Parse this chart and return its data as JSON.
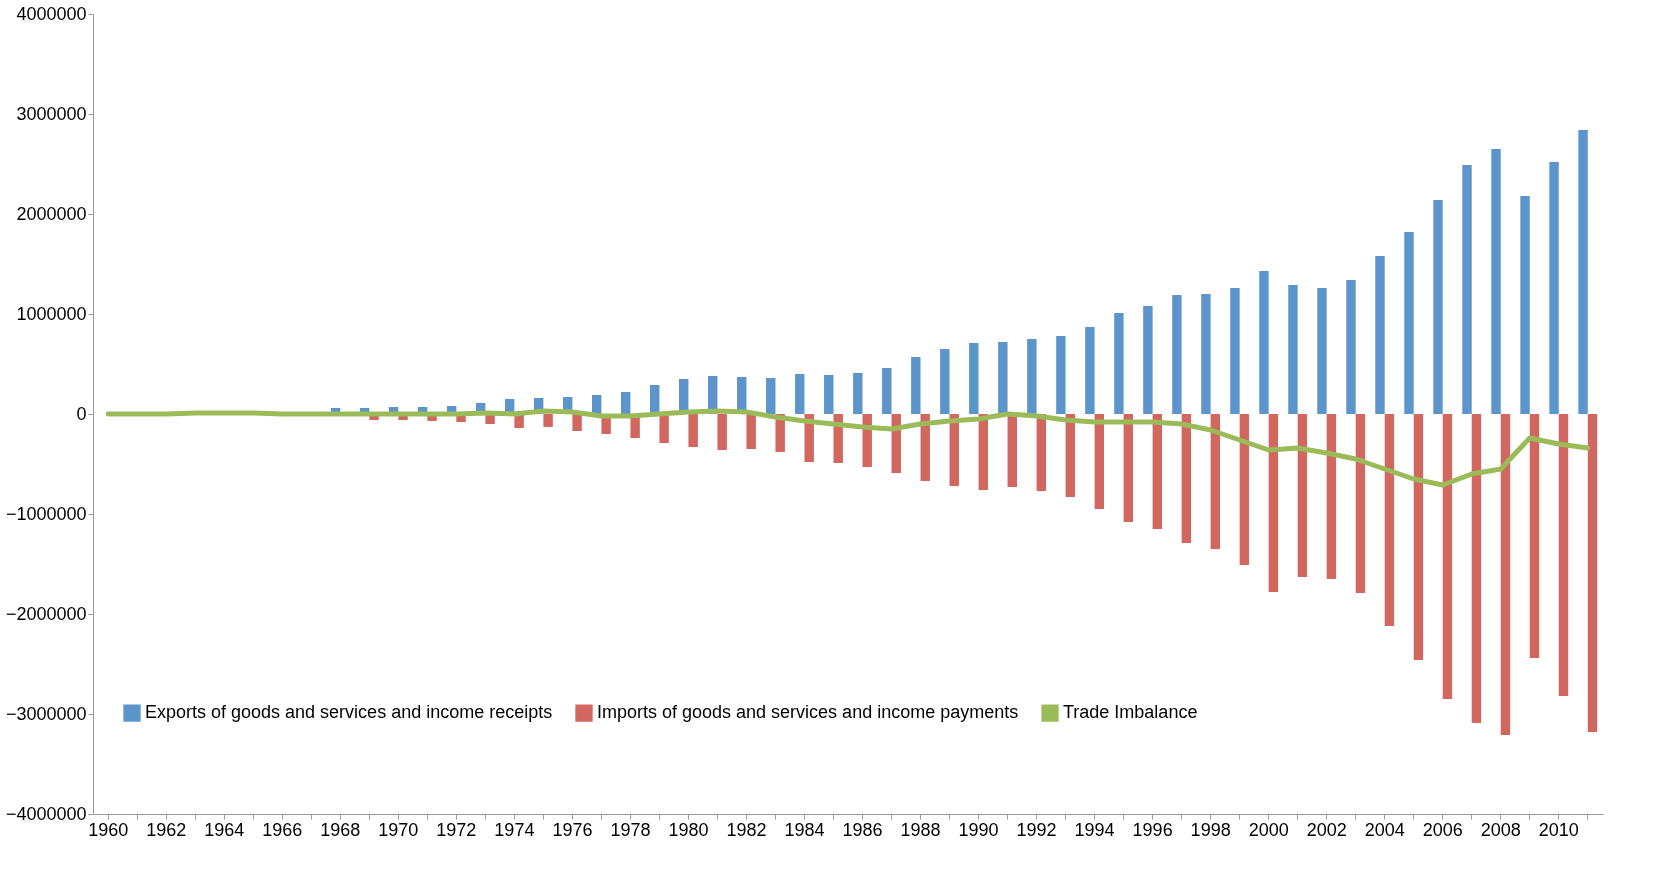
{
  "chart_data": {
    "type": "bar",
    "categories": [
      "1960",
      null,
      "1962",
      null,
      "1964",
      null,
      "1966",
      null,
      "1968",
      null,
      "1970",
      null,
      "1972",
      null,
      "1974",
      null,
      "1976",
      null,
      "1978",
      null,
      "1980",
      null,
      "1982",
      null,
      "1984",
      null,
      "1986",
      null,
      "1988",
      null,
      "1990",
      null,
      "1992",
      null,
      "1994",
      null,
      "1996",
      null,
      "1998",
      null,
      "2000",
      null,
      "2002",
      null,
      "2004",
      null,
      "2006",
      null,
      "2008",
      null,
      "2010",
      null
    ],
    "series": [
      {
        "name": "Exports of goods and services and income receipts",
        "color": "#5b95cb",
        "values": [
          null,
          null,
          null,
          null,
          null,
          null,
          null,
          null,
          60000,
          60000,
          70000,
          70000,
          80000,
          110000,
          150000,
          160000,
          170000,
          190000,
          220000,
          290000,
          350000,
          380000,
          370000,
          360000,
          400000,
          390000,
          410000,
          460000,
          570000,
          650000,
          710000,
          720000,
          750000,
          780000,
          870000,
          1010000,
          1080000,
          1190000,
          1200000,
          1260000,
          1430000,
          1290000,
          1260000,
          1340000,
          1580000,
          1820000,
          2140000,
          2490000,
          2650000,
          2180000,
          2520000,
          2840000
        ]
      },
      {
        "name": "Imports of goods and services and income payments",
        "color": "#d26760",
        "values": [
          null,
          null,
          null,
          null,
          null,
          null,
          null,
          null,
          null,
          -60000,
          -60000,
          -70000,
          -80000,
          -100000,
          -140000,
          -130000,
          -170000,
          -200000,
          -240000,
          -290000,
          -330000,
          -360000,
          -350000,
          -380000,
          -480000,
          -490000,
          -530000,
          -590000,
          -670000,
          -720000,
          -760000,
          -730000,
          -770000,
          -830000,
          -950000,
          -1080000,
          -1150000,
          -1290000,
          -1350000,
          -1510000,
          -1780000,
          -1630000,
          -1650000,
          -1790000,
          -2120000,
          -2460000,
          -2850000,
          -3090000,
          -3210000,
          -2440000,
          -2820000,
          -3180000
        ]
      },
      {
        "name": "Trade Imbalance",
        "type": "line",
        "color": "#9bbb59",
        "values": [
          0,
          0,
          0,
          10000,
          10000,
          10000,
          0,
          0,
          0,
          0,
          0,
          0,
          0,
          10000,
          0,
          30000,
          20000,
          -20000,
          -20000,
          0,
          20000,
          30000,
          20000,
          -30000,
          -70000,
          -100000,
          -130000,
          -150000,
          -100000,
          -70000,
          -50000,
          0,
          -20000,
          -60000,
          -80000,
          -80000,
          -80000,
          -100000,
          -160000,
          -260000,
          -360000,
          -340000,
          -390000,
          -450000,
          -550000,
          -650000,
          -710000,
          -600000,
          -550000,
          -240000,
          -300000,
          -340000
        ]
      }
    ],
    "ylim": [
      -4000000,
      4000000
    ],
    "yticks": [
      -4000000,
      -3000000,
      -2000000,
      -1000000,
      0,
      1000000,
      2000000,
      3000000,
      4000000
    ],
    "grid": false,
    "legend": "bottom"
  }
}
